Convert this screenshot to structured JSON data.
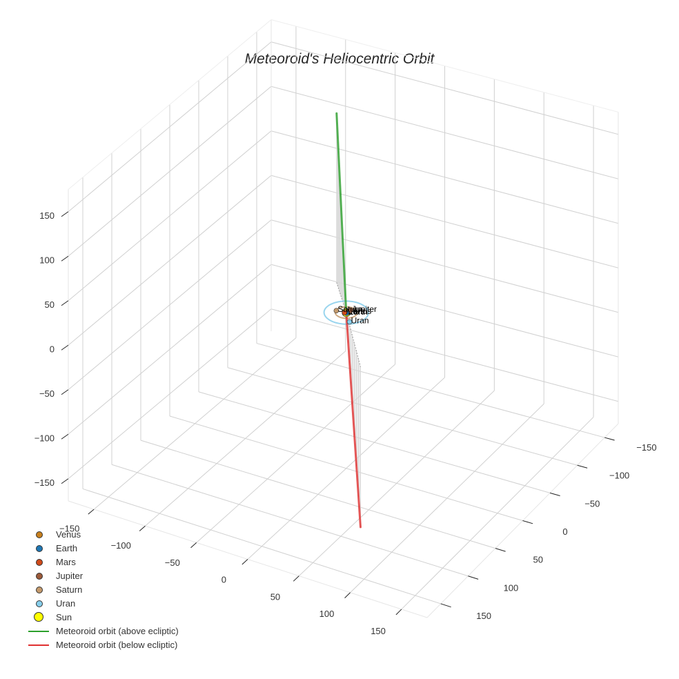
{
  "chart_data": {
    "type": "scatter3d",
    "title": "Meteoroid's Heliocentric Orbit",
    "axes": {
      "x": {
        "label": "",
        "ticks": [
          -150,
          -100,
          -50,
          0,
          50,
          100,
          150
        ],
        "range": [
          -175,
          175
        ]
      },
      "y": {
        "label": "",
        "ticks": [
          -150,
          -100,
          -50,
          0,
          50,
          100,
          150
        ],
        "range": [
          -175,
          175
        ]
      },
      "z": {
        "label": "",
        "ticks": [
          -150,
          -100,
          -50,
          0,
          50,
          100,
          150
        ],
        "range": [
          -175,
          175
        ]
      }
    },
    "grid": true,
    "legend_position": "lower left",
    "planets": [
      {
        "name": "Venus",
        "color": "#c8801e",
        "x": 0.5,
        "y": -0.5,
        "z": 0
      },
      {
        "name": "Earth",
        "color": "#1f77b4",
        "x": 0.8,
        "y": 0.6,
        "z": 0
      },
      {
        "name": "Mars",
        "color": "#d04a1a",
        "x": -1.2,
        "y": 0.8,
        "z": 0
      },
      {
        "name": "Jupiter",
        "color": "#9c5a3a",
        "x": 1.5,
        "y": -5.0,
        "z": 0
      },
      {
        "name": "Saturn",
        "color": "#c49a6c",
        "x": -9.0,
        "y": 1.5,
        "z": 0
      },
      {
        "name": "Uran",
        "color": "#87ceeb",
        "x": 10.0,
        "y": 12.0,
        "z": 0
      }
    ],
    "sun": {
      "name": "Sun",
      "color": "#ffff00",
      "x": 0,
      "y": 0,
      "z": 0
    },
    "orbit_rings": [
      {
        "name": "Saturn orbit",
        "radius": 9.5,
        "color": "#c49a6c"
      },
      {
        "name": "Uran orbit",
        "radius": 19.2,
        "color": "#87ceeb"
      }
    ],
    "series": [
      {
        "name": "Meteoroid orbit (above ecliptic)",
        "color": "#2ca02c",
        "points": [
          [
            0,
            0,
            0
          ],
          [
            -32,
            -40,
            190
          ]
        ]
      },
      {
        "name": "Meteoroid orbit (below ecliptic)",
        "color": "#e03030",
        "points": [
          [
            0,
            0,
            0
          ],
          [
            54,
            72,
            -180
          ]
        ]
      }
    ]
  },
  "legend": {
    "items": [
      {
        "label": "Venus",
        "type": "marker",
        "color": "#c8801e"
      },
      {
        "label": "Earth",
        "type": "marker",
        "color": "#1f77b4"
      },
      {
        "label": "Mars",
        "type": "marker",
        "color": "#d04a1a"
      },
      {
        "label": "Jupiter",
        "type": "marker",
        "color": "#9c5a3a"
      },
      {
        "label": "Saturn",
        "type": "marker",
        "color": "#c49a6c"
      },
      {
        "label": "Uran",
        "type": "marker",
        "color": "#87ceeb"
      },
      {
        "label": "Sun",
        "type": "bigmarker",
        "color": "#ffff00"
      },
      {
        "label": "Meteoroid orbit (above ecliptic)",
        "type": "line",
        "color": "#2ca02c"
      },
      {
        "label": "Meteoroid orbit (below ecliptic)",
        "type": "line",
        "color": "#e03030"
      }
    ]
  }
}
